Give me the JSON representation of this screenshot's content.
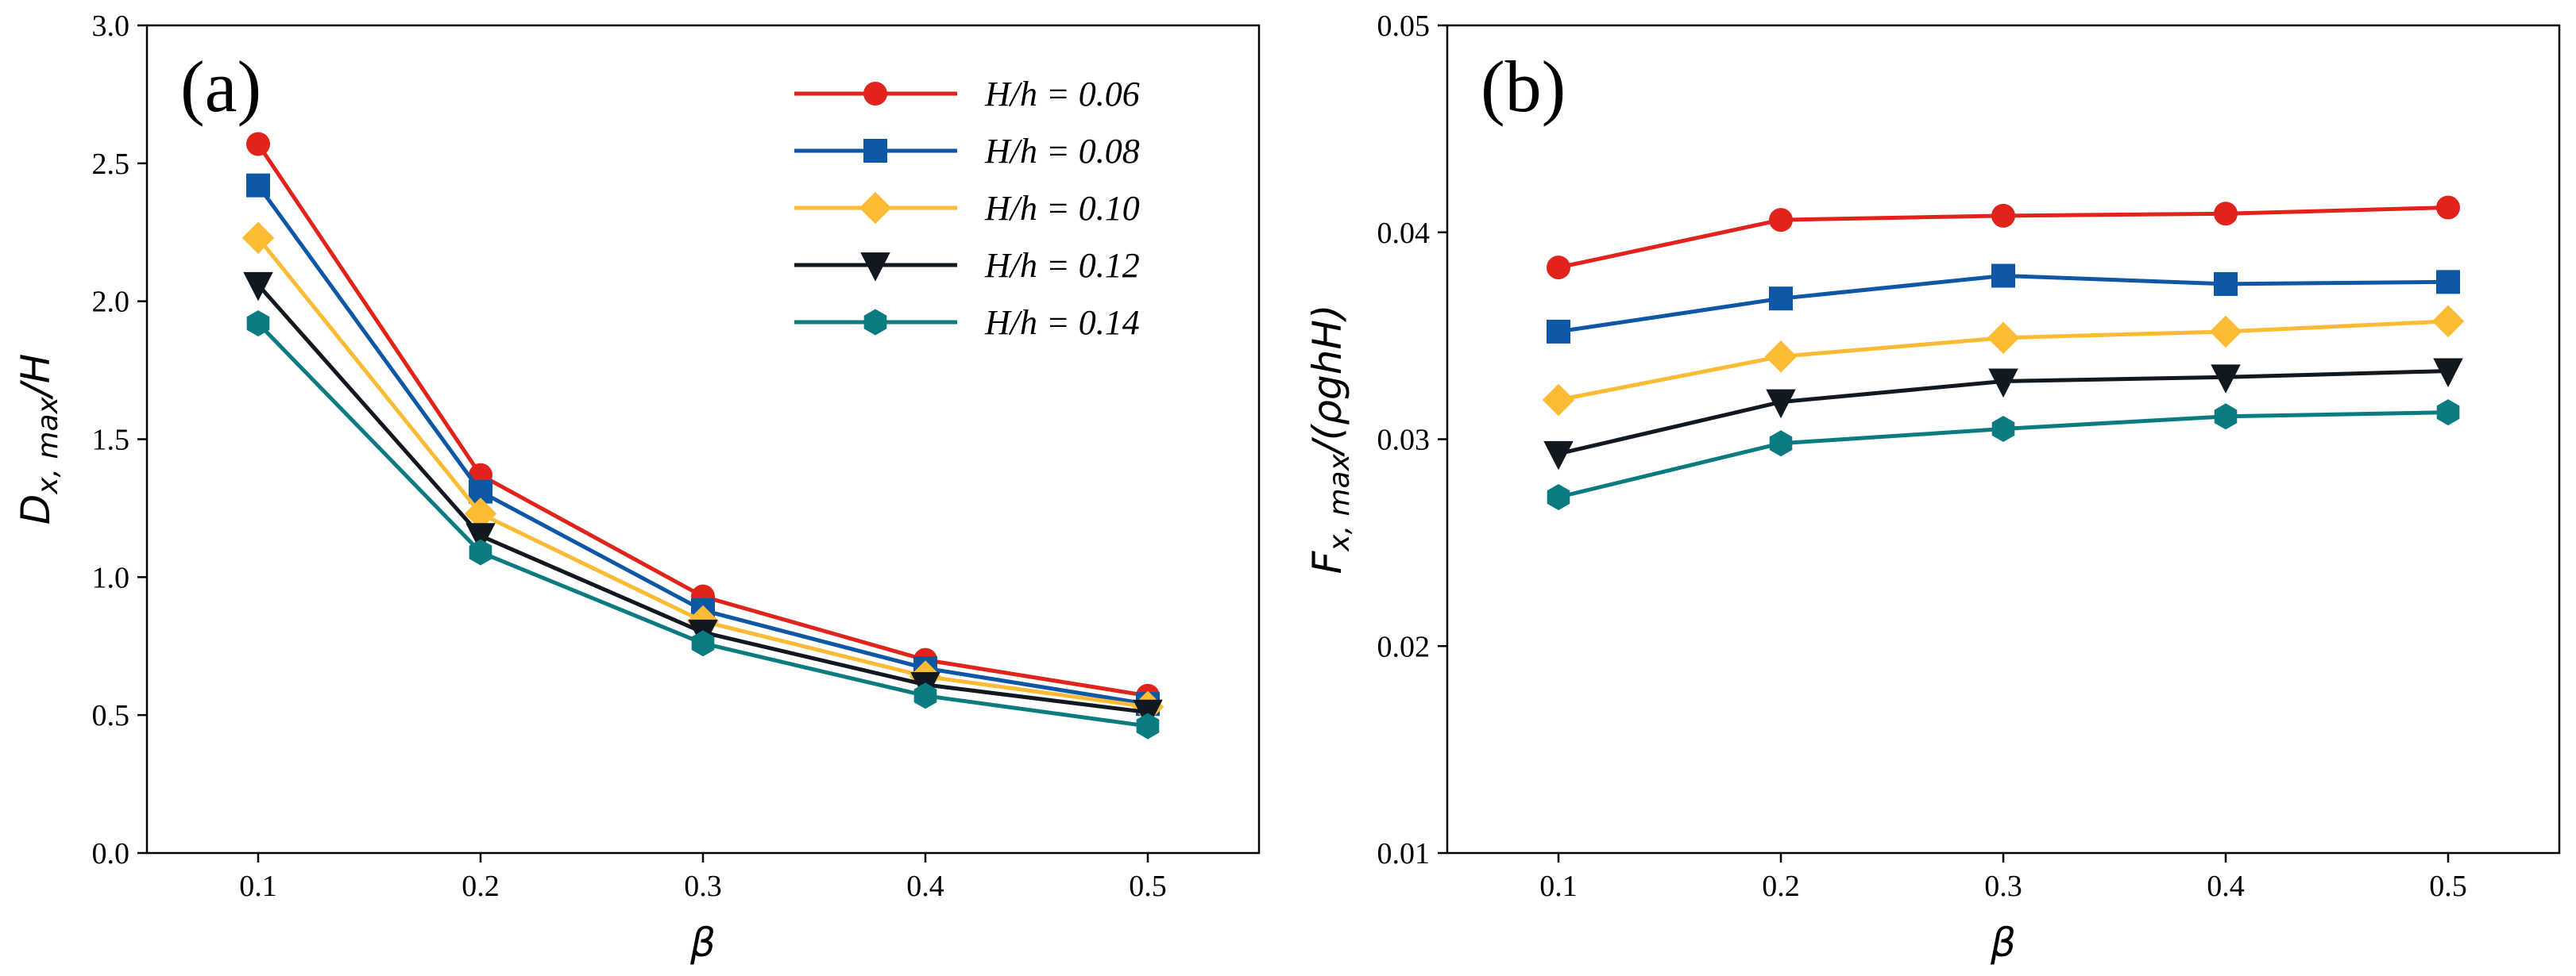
{
  "chart_data": [
    {
      "type": "line",
      "panel_label": "(a)",
      "xlabel": "β",
      "ylabel": "D",
      "ylabel_sub": "x, max",
      "ylabel_rest": "/H",
      "x": [
        0.1,
        0.2,
        0.3,
        0.4,
        0.5
      ],
      "xticks": [
        "0.1",
        "0.2",
        "0.3",
        "0.4",
        "0.5"
      ],
      "yticks": [
        "0.0",
        "0.5",
        "1.0",
        "1.5",
        "2.0",
        "2.5",
        "3.0"
      ],
      "xlim": [
        0.05,
        0.55
      ],
      "ylim": [
        0.0,
        3.0
      ],
      "legend": "top-right",
      "series": [
        {
          "name": "H/h = 0.06",
          "color": "#e0241b",
          "marker": "circle",
          "values": [
            2.57,
            1.37,
            0.93,
            0.7,
            0.57
          ]
        },
        {
          "name": "H/h = 0.08",
          "color": "#0e57a6",
          "marker": "square",
          "values": [
            2.42,
            1.31,
            0.88,
            0.67,
            0.54
          ]
        },
        {
          "name": "H/h = 0.10",
          "color": "#fbbb34",
          "marker": "diamond",
          "values": [
            2.23,
            1.23,
            0.84,
            0.64,
            0.53
          ]
        },
        {
          "name": "H/h = 0.12",
          "color": "#111820",
          "marker": "triangle",
          "values": [
            2.06,
            1.15,
            0.8,
            0.61,
            0.51
          ]
        },
        {
          "name": "H/h = 0.14",
          "color": "#0b7b82",
          "marker": "hexagon",
          "values": [
            1.92,
            1.09,
            0.76,
            0.57,
            0.46
          ]
        }
      ]
    },
    {
      "type": "line",
      "panel_label": "(b)",
      "xlabel": "β",
      "ylabel": "F",
      "ylabel_sub": "x, max",
      "ylabel_rest": "/(ρghH)",
      "x": [
        0.1,
        0.2,
        0.3,
        0.4,
        0.5
      ],
      "xticks": [
        "0.1",
        "0.2",
        "0.3",
        "0.4",
        "0.5"
      ],
      "yticks": [
        "0.01",
        "0.02",
        "0.03",
        "0.04",
        "0.05"
      ],
      "xlim": [
        0.05,
        0.55
      ],
      "ylim": [
        0.01,
        0.05
      ],
      "series": [
        {
          "name": "H/h = 0.06",
          "color": "#e0241b",
          "marker": "circle",
          "values": [
            0.0383,
            0.0406,
            0.0408,
            0.0409,
            0.0412
          ]
        },
        {
          "name": "H/h = 0.08",
          "color": "#0e57a6",
          "marker": "square",
          "values": [
            0.0352,
            0.0368,
            0.0379,
            0.0375,
            0.0376
          ]
        },
        {
          "name": "H/h = 0.10",
          "color": "#fbbb34",
          "marker": "diamond",
          "values": [
            0.0319,
            0.034,
            0.0349,
            0.0352,
            0.0357
          ]
        },
        {
          "name": "H/h = 0.12",
          "color": "#111820",
          "marker": "triangle",
          "values": [
            0.0293,
            0.0318,
            0.0328,
            0.033,
            0.0333
          ]
        },
        {
          "name": "H/h = 0.14",
          "color": "#0b7b82",
          "marker": "hexagon",
          "values": [
            0.0272,
            0.0298,
            0.0305,
            0.0311,
            0.0313
          ]
        }
      ]
    }
  ]
}
